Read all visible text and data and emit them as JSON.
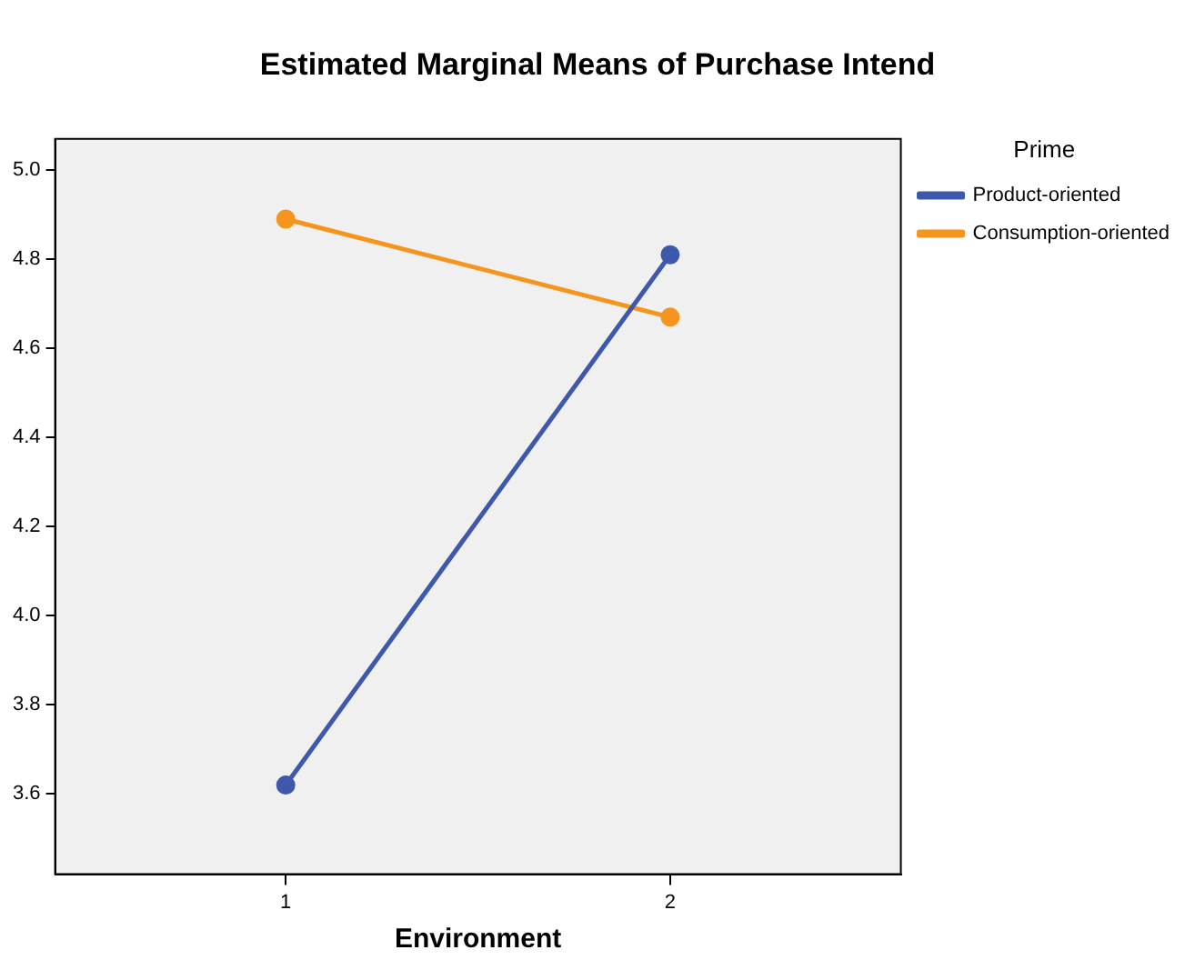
{
  "chart_data": {
    "type": "line",
    "title": "Estimated Marginal Means of Purchase Intend",
    "xlabel": "Environment",
    "legend_title": "Prime",
    "legend": "right",
    "marker": "circle",
    "grid": false,
    "x": [
      1,
      2
    ],
    "xlim": [
      0.4,
      2.6
    ],
    "xticks": [
      1,
      2
    ],
    "ylim": [
      3.42,
      5.07
    ],
    "yticks": [
      {
        "value": 3.6,
        "label": "3.6"
      },
      {
        "value": 3.8,
        "label": "3.8"
      },
      {
        "value": 4,
        "label": "4.0"
      },
      {
        "value": 4.2,
        "label": "4.2"
      },
      {
        "value": 4.4,
        "label": "4.4"
      },
      {
        "value": 4.6,
        "label": "4.6"
      },
      {
        "value": 4.8,
        "label": "4.8"
      },
      {
        "value": 5,
        "label": "5.0"
      }
    ],
    "series": [
      {
        "name": "Product-oriented",
        "color": "#3e58ac",
        "values": [
          3.62,
          4.81
        ]
      },
      {
        "name": "Consumption-oriented",
        "color": "#f5951e",
        "values": [
          4.89,
          4.67
        ]
      }
    ]
  }
}
